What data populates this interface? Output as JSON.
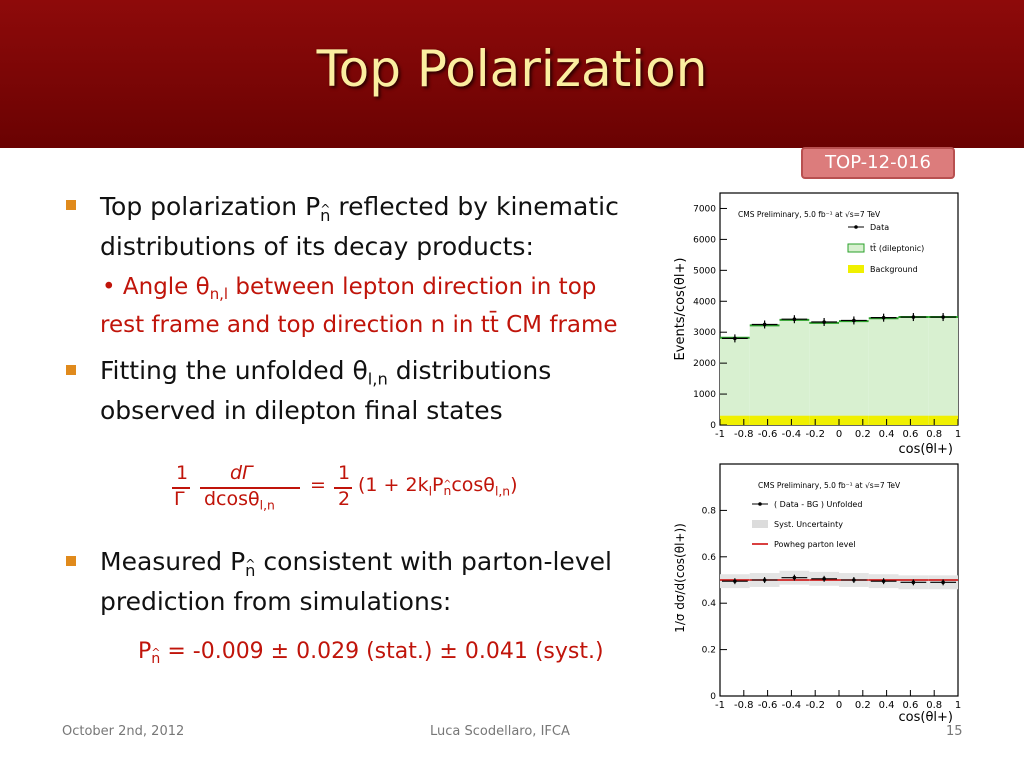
{
  "slide": {
    "title": "Top Polarization",
    "tag": "TOP-12-016"
  },
  "bullets": {
    "b1_line1": "Top polarization P",
    "b1_n": "n",
    "b1_line1_end": " reflected by kinematic",
    "b1_line2": "distributions of its decay products:",
    "b1_sub_line1_a": "• Angle θ",
    "b1_sub_line1_sub": "n,l",
    "b1_sub_line1_b": " between lepton direction in top",
    "b1_sub_line2": "rest frame and top direction n in tt̄ CM frame",
    "b2_line1_a": "Fitting the unfolded θ",
    "b2_line1_sub": "l,n",
    "b2_line1_b": " distributions",
    "b2_line2": "observed in dilepton final states",
    "b3_line1_a": "Measured P",
    "b3_line1_n": "n",
    "b3_line1_b": " consistent with parton-level",
    "b3_line2": "prediction from simulations:"
  },
  "formula": {
    "one": "1",
    "gamma": "Γ",
    "dGamma": "dΓ",
    "denominator": "dcosθ",
    "den_sub": "l,n",
    "equals": "=",
    "half_num": "1",
    "half_den": "2",
    "rhs_a": "(1 + 2k",
    "rhs_l": "l",
    "rhs_b": "P",
    "rhs_n": "n",
    "rhs_c": "cosθ",
    "rhs_sub": "l,n",
    "rhs_d": ")"
  },
  "result": {
    "p": "P",
    "n": "n",
    "value": " = -0.009 ± 0.029 (stat.) ± 0.041 (syst.)"
  },
  "footer": {
    "date": "October 2nd, 2012",
    "author": "Luca Scodellaro, IFCA",
    "page": "15"
  },
  "chart_data": [
    {
      "type": "bar",
      "annotation": "CMS Preliminary, 5.0 fb⁻¹ at √s=7 TeV",
      "ylabel": "Events/cos(θl+)",
      "xlabel": "cos(θl+)",
      "xlim": [
        -1,
        1
      ],
      "ylim": [
        0,
        7500
      ],
      "xticks": [
        "-1",
        "-0.8",
        "-0.6",
        "-0.4",
        "-0.2",
        "0",
        "0.2",
        "0.4",
        "0.6",
        "0.8",
        "1"
      ],
      "yticks": [
        "0",
        "1000",
        "2000",
        "3000",
        "4000",
        "5000",
        "6000",
        "7000"
      ],
      "bin_edges": [
        -1,
        -0.75,
        -0.5,
        -0.25,
        0,
        0.25,
        0.5,
        0.75,
        1
      ],
      "legend": [
        "Data",
        "tt̄ (dileptonic)",
        "Background"
      ],
      "series": [
        {
          "name": "Data",
          "values": [
            2800,
            3250,
            3420,
            3330,
            3380,
            3470,
            3490,
            3490
          ]
        },
        {
          "name": "tt̄ (dileptonic)",
          "values": [
            2820,
            3220,
            3400,
            3300,
            3360,
            3450,
            3490,
            3490
          ]
        },
        {
          "name": "Background",
          "values": [
            300,
            300,
            300,
            300,
            300,
            300,
            300,
            300
          ]
        }
      ],
      "colors": {
        "ttbar": "#2aa02a",
        "background": "#f0f000",
        "data": "#000000"
      }
    },
    {
      "type": "line",
      "annotation": "CMS Preliminary, 5.0 fb⁻¹ at √s=7 TeV",
      "ylabel": "1/σ dσ/d(cos(θl+))",
      "xlabel": "cos(θl+)",
      "xlim": [
        -1,
        1
      ],
      "ylim": [
        0,
        1.0
      ],
      "xticks": [
        "-1",
        "-0.8",
        "-0.6",
        "-0.4",
        "-0.2",
        "0",
        "0.2",
        "0.4",
        "0.6",
        "0.8",
        "1"
      ],
      "yticks": [
        "0",
        "0.2",
        "0.4",
        "0.6",
        "0.8"
      ],
      "bin_edges": [
        -1,
        -0.75,
        -0.5,
        -0.25,
        0,
        0.25,
        0.5,
        0.75,
        1
      ],
      "legend": [
        "( Data - BG ) Unfolded",
        "Syst. Uncertainty",
        "Powheg parton level"
      ],
      "series": [
        {
          "name": "( Data - BG ) Unfolded",
          "values": [
            0.495,
            0.5,
            0.51,
            0.505,
            0.5,
            0.495,
            0.49,
            0.49
          ]
        },
        {
          "name": "Powheg parton level",
          "values": [
            0.5,
            0.5,
            0.5,
            0.5,
            0.5,
            0.5,
            0.5,
            0.5
          ]
        }
      ],
      "colors": {
        "data": "#000000",
        "powheg": "#cc0000"
      }
    }
  ]
}
